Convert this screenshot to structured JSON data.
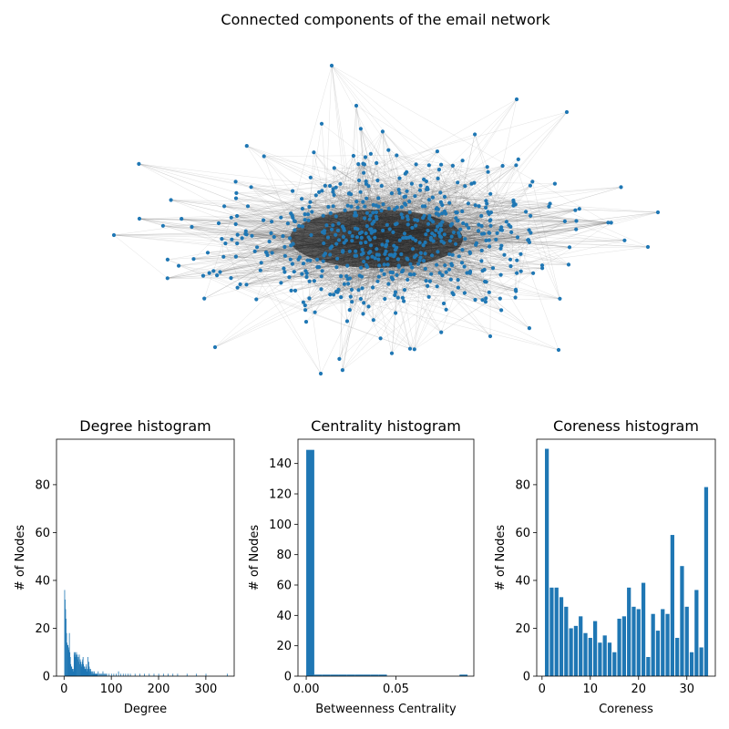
{
  "figure": {
    "title": "Connected components of the email network",
    "bar_color": "#1f77b4",
    "node_color": "#1f77b4",
    "edge_color": "#555555"
  },
  "chart_data": [
    {
      "type": "network",
      "title": "Connected components of the email network",
      "node_color": "#1f77b4",
      "approx_node_count": 986,
      "layout": "spring"
    },
    {
      "type": "bar",
      "title": "Degree histogram",
      "xlabel": "Degree",
      "ylabel": "# of Nodes",
      "xlim": [
        -16,
        360
      ],
      "ylim": [
        0,
        99
      ],
      "xticks": [
        "0",
        "100",
        "200",
        "300"
      ],
      "xtick_values": [
        0,
        100,
        200,
        300
      ],
      "yticks": [
        "0",
        "20",
        "40",
        "60",
        "80"
      ],
      "ytick_values": [
        0,
        20,
        40,
        60,
        80
      ],
      "x": [
        1,
        2,
        3,
        4,
        5,
        6,
        7,
        8,
        9,
        10,
        11,
        12,
        13,
        14,
        15,
        16,
        17,
        18,
        19,
        20,
        21,
        22,
        23,
        24,
        25,
        26,
        27,
        28,
        29,
        30,
        31,
        32,
        33,
        34,
        35,
        36,
        37,
        38,
        39,
        40,
        41,
        42,
        43,
        44,
        45,
        46,
        47,
        48,
        49,
        50,
        51,
        52,
        53,
        54,
        55,
        56,
        57,
        58,
        59,
        60,
        61,
        62,
        63,
        64,
        65,
        66,
        67,
        68,
        69,
        70,
        72,
        74,
        76,
        78,
        80,
        82,
        84,
        86,
        88,
        90,
        95,
        100,
        105,
        110,
        115,
        120,
        125,
        130,
        135,
        140,
        150,
        160,
        170,
        180,
        190,
        200,
        210,
        220,
        230,
        240,
        260,
        280,
        300,
        345
      ],
      "values": [
        36,
        32,
        28,
        24,
        18,
        14,
        13,
        13,
        12,
        11,
        18,
        10,
        8,
        5,
        4,
        4,
        3,
        3,
        3,
        2,
        10,
        9,
        10,
        8,
        9,
        10,
        8,
        9,
        7,
        8,
        6,
        9,
        5,
        7,
        6,
        4,
        5,
        6,
        7,
        8,
        5,
        4,
        4,
        3,
        3,
        4,
        5,
        3,
        2,
        8,
        3,
        6,
        4,
        3,
        2,
        3,
        2,
        1,
        2,
        1,
        2,
        1,
        1,
        2,
        1,
        1,
        1,
        1,
        1,
        1,
        2,
        1,
        1,
        1,
        1,
        2,
        1,
        1,
        1,
        1,
        1,
        1,
        1,
        1,
        2,
        1,
        1,
        1,
        1,
        1,
        1,
        1,
        1,
        1,
        1,
        1,
        1,
        1,
        1,
        1,
        1,
        1,
        1,
        1
      ],
      "bar_width": 1
    },
    {
      "type": "bar",
      "title": "Centrality histogram",
      "xlabel": "Betweenness Centrality",
      "ylabel": "# of Nodes",
      "xlim": [
        -0.0046,
        0.0935
      ],
      "ylim": [
        0,
        156
      ],
      "xticks": [
        "0.00",
        "0.05"
      ],
      "xtick_values": [
        0.0,
        0.05
      ],
      "yticks": [
        "0",
        "20",
        "40",
        "60",
        "80",
        "100",
        "120",
        "140"
      ],
      "ytick_values": [
        0,
        20,
        40,
        60,
        80,
        100,
        120,
        140
      ],
      "x": [
        0.0,
        0.0045,
        0.009,
        0.0135,
        0.018,
        0.0225,
        0.027,
        0.0315,
        0.036,
        0.0405,
        0.045,
        0.0495,
        0.054,
        0.0585,
        0.063,
        0.0675,
        0.072,
        0.0765,
        0.081,
        0.0855
      ],
      "values": [
        149,
        1,
        1,
        1,
        1,
        1,
        1,
        1,
        1,
        1,
        0,
        0,
        0,
        0,
        0,
        0,
        0,
        0,
        0,
        1
      ],
      "bar_width": 0.0045
    },
    {
      "type": "bar",
      "title": "Coreness histogram",
      "xlabel": "Coreness",
      "ylabel": "# of Nodes",
      "xlim": [
        -1.1,
        35.9
      ],
      "ylim": [
        0,
        99
      ],
      "xticks": [
        "0",
        "10",
        "20",
        "30"
      ],
      "xtick_values": [
        0,
        10,
        20,
        30
      ],
      "yticks": [
        "0",
        "20",
        "40",
        "60",
        "80"
      ],
      "ytick_values": [
        0,
        20,
        40,
        60,
        80
      ],
      "x": [
        1,
        2,
        3,
        4,
        5,
        6,
        7,
        8,
        9,
        10,
        11,
        12,
        13,
        14,
        15,
        16,
        17,
        18,
        19,
        20,
        21,
        22,
        23,
        24,
        25,
        26,
        27,
        28,
        29,
        30,
        31,
        32,
        33,
        34
      ],
      "values": [
        95,
        37,
        37,
        33,
        29,
        20,
        21,
        25,
        18,
        16,
        23,
        14,
        17,
        14,
        10,
        24,
        25,
        37,
        29,
        28,
        39,
        8,
        26,
        19,
        28,
        26,
        59,
        16,
        46,
        29,
        10,
        36,
        12,
        79
      ],
      "bar_width": 0.8
    }
  ]
}
